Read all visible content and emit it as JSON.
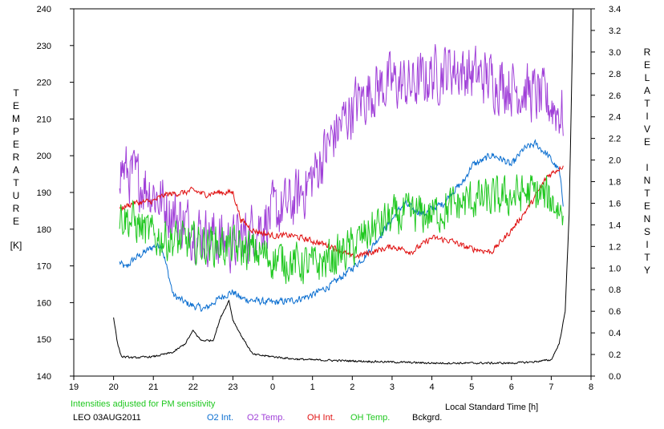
{
  "chart_data": {
    "type": "line",
    "title": "",
    "xlabel": "Local Standard Time [h]",
    "x_ticks": [
      "19",
      "20",
      "21",
      "22",
      "23",
      "0",
      "1",
      "2",
      "3",
      "4",
      "5",
      "6",
      "7",
      "8"
    ],
    "xlim": [
      19,
      32
    ],
    "y_left": {
      "label_letters": [
        "T",
        "E",
        "M",
        "P",
        "E",
        "R",
        "A",
        "T",
        "U",
        "R",
        "E"
      ],
      "unit": "[K]",
      "ticks": [
        "140",
        "150",
        "160",
        "170",
        "180",
        "190",
        "200",
        "210",
        "220",
        "230",
        "240"
      ],
      "lim": [
        140,
        240
      ]
    },
    "y_right": {
      "label_word1": [
        "R",
        "E",
        "L",
        "A",
        "T",
        "I",
        "V",
        "E"
      ],
      "label_word2": [
        "I",
        "N",
        "T",
        "E",
        "N",
        "S",
        "I",
        "T",
        "Y"
      ],
      "ticks": [
        "0.0",
        "0.2",
        "0.4",
        "0.6",
        "0.8",
        "1.0",
        "1.2",
        "1.4",
        "1.6",
        "1.8",
        "2.0",
        "2.2",
        "2.4",
        "2.6",
        "2.8",
        "3.0",
        "3.2",
        "3.4"
      ],
      "lim": [
        0,
        3.4
      ]
    },
    "note": "Intensities adjusted for PM sensitivity",
    "station": "LEO 03AUG2011",
    "series": [
      {
        "name": "O2 Int.",
        "axis": "right",
        "color": "#0a6ed0",
        "noise": 0.03,
        "x": [
          20.15,
          20.3,
          20.5,
          20.8,
          21.0,
          21.2,
          21.5,
          21.8,
          22.0,
          22.3,
          22.5,
          22.8,
          23.0,
          23.2,
          23.5,
          24.0,
          24.5,
          25.0,
          25.5,
          26.0,
          26.3,
          26.5,
          26.8,
          27.0,
          27.3,
          27.5,
          27.8,
          28.0,
          28.3,
          28.5,
          28.8,
          29.0,
          29.3,
          29.5,
          29.8,
          30.0,
          30.3,
          30.6,
          30.9,
          31.2,
          31.3
        ],
        "y": [
          1.05,
          1.0,
          1.08,
          1.15,
          1.2,
          1.22,
          0.75,
          0.68,
          0.65,
          0.62,
          0.68,
          0.75,
          0.78,
          0.72,
          0.7,
          0.68,
          0.7,
          0.75,
          0.85,
          1.0,
          1.1,
          1.2,
          1.35,
          1.45,
          1.6,
          1.55,
          1.5,
          1.55,
          1.6,
          1.7,
          1.8,
          1.95,
          2.0,
          2.05,
          2.0,
          1.95,
          2.1,
          2.15,
          2.05,
          1.9,
          1.6
        ]
      },
      {
        "name": "O2 Temp.",
        "axis": "left",
        "color": "#a040d8",
        "noise": 7,
        "x": [
          20.15,
          20.5,
          20.8,
          21.0,
          21.5,
          22.0,
          22.5,
          23.0,
          23.5,
          24.0,
          24.5,
          25.0,
          25.5,
          26.0,
          26.5,
          27.0,
          27.5,
          28.0,
          28.5,
          29.0,
          29.5,
          30.0,
          30.5,
          31.0,
          31.3
        ],
        "y": [
          197,
          194,
          192,
          190,
          184,
          180,
          178,
          176,
          180,
          184,
          187,
          194,
          205,
          213,
          218,
          220,
          219,
          222,
          224,
          222,
          221,
          219,
          217,
          214,
          211
        ]
      },
      {
        "name": "OH Int.",
        "axis": "right",
        "color": "#e01010",
        "noise": 0.025,
        "x": [
          20.15,
          20.5,
          21.0,
          21.3,
          21.8,
          22.0,
          22.3,
          22.6,
          23.0,
          23.2,
          23.5,
          24.0,
          24.5,
          25.0,
          25.5,
          26.0,
          26.5,
          27.0,
          27.5,
          28.0,
          28.5,
          28.8,
          29.0,
          29.5,
          30.0,
          30.5,
          30.9,
          31.3
        ],
        "y": [
          1.55,
          1.6,
          1.62,
          1.68,
          1.7,
          1.72,
          1.68,
          1.7,
          1.7,
          1.45,
          1.35,
          1.3,
          1.3,
          1.25,
          1.2,
          1.1,
          1.15,
          1.2,
          1.15,
          1.28,
          1.25,
          1.2,
          1.18,
          1.15,
          1.35,
          1.6,
          1.85,
          1.95
        ]
      },
      {
        "name": "OH Temp.",
        "axis": "left",
        "color": "#20c820",
        "noise": 5,
        "x": [
          20.15,
          20.5,
          21.0,
          21.5,
          22.0,
          22.5,
          23.0,
          23.5,
          24.0,
          24.5,
          25.0,
          25.5,
          26.0,
          26.5,
          27.0,
          27.5,
          28.0,
          28.5,
          29.0,
          29.5,
          30.0,
          30.5,
          31.0,
          31.3
        ],
        "y": [
          184,
          182,
          178,
          177,
          176,
          176,
          175,
          174,
          172,
          171,
          170,
          172,
          175,
          180,
          183,
          184,
          184,
          186,
          188,
          188,
          189,
          190,
          188,
          184
        ]
      },
      {
        "name": "Bckgrd.",
        "axis": "right",
        "color": "#000000",
        "noise": 0.008,
        "x": [
          20.0,
          20.1,
          20.2,
          20.5,
          21.0,
          21.5,
          21.8,
          22.0,
          22.2,
          22.5,
          22.7,
          22.9,
          23.0,
          23.2,
          23.5,
          24.0,
          24.5,
          25.0,
          26.0,
          27.0,
          28.0,
          29.0,
          30.0,
          30.5,
          31.0,
          31.2,
          31.35,
          31.45,
          31.55
        ],
        "y": [
          0.55,
          0.3,
          0.18,
          0.17,
          0.18,
          0.22,
          0.3,
          0.42,
          0.33,
          0.33,
          0.55,
          0.7,
          0.52,
          0.38,
          0.2,
          0.18,
          0.16,
          0.15,
          0.14,
          0.13,
          0.12,
          0.12,
          0.12,
          0.13,
          0.15,
          0.3,
          0.6,
          1.5,
          3.4
        ]
      }
    ]
  }
}
